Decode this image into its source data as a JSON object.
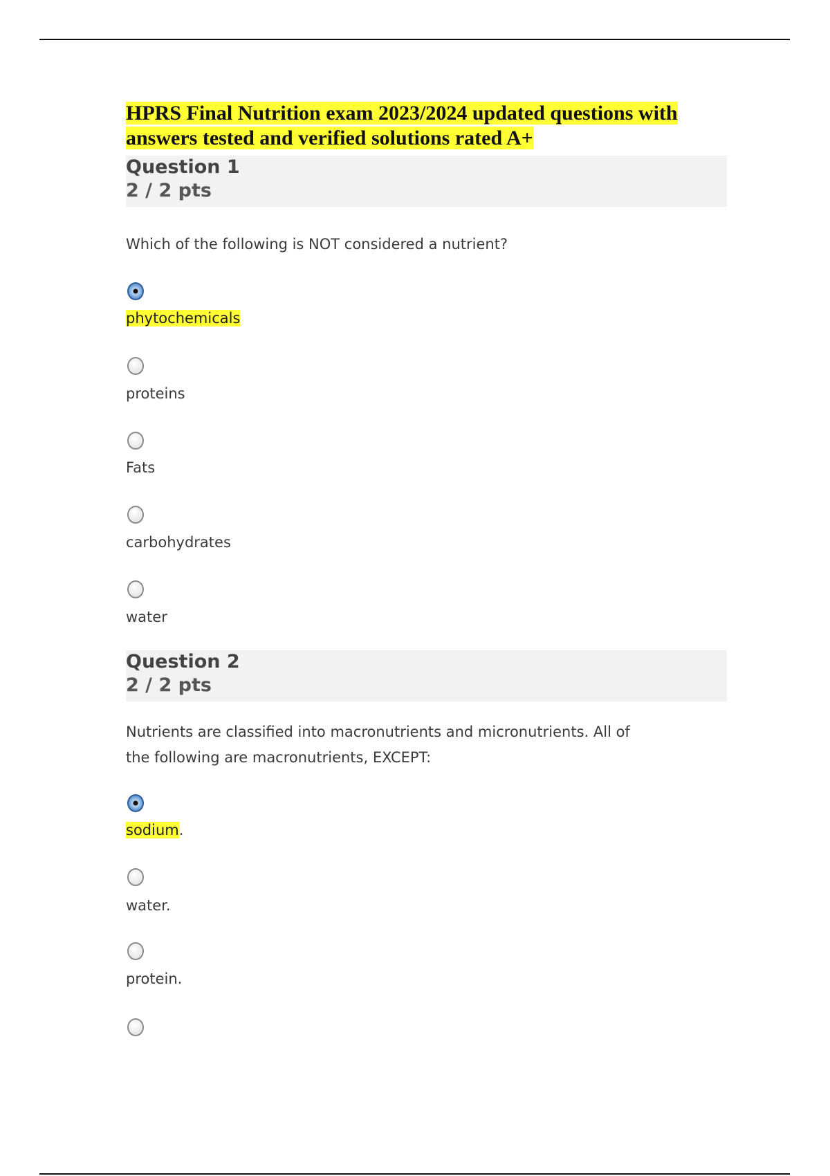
{
  "document": {
    "title_line1": "HPRS Final Nutrition exam 2023/2024 updated questions with",
    "title_line2": "answers tested and verified solutions rated A+",
    "highlight_color": "#ffff33"
  },
  "questions": [
    {
      "label": "Question 1",
      "points": "2 / 2 pts",
      "text": "Which of the following is NOT considered a nutrient?",
      "options": [
        {
          "label": "phytochemicals",
          "suffix": "",
          "selected": true
        },
        {
          "label": "proteins",
          "suffix": "",
          "selected": false
        },
        {
          "label": "Fats",
          "suffix": "",
          "selected": false
        },
        {
          "label": "carbohydrates",
          "suffix": "",
          "selected": false
        },
        {
          "label": "water",
          "suffix": "",
          "selected": false
        }
      ]
    },
    {
      "label": "Question 2",
      "points": "2 / 2 pts",
      "text_line1": "Nutrients are classified into macronutrients and micronutrients. All of",
      "text_line2": "the following are macronutrients, EXCEPT:",
      "options": [
        {
          "label": "sodium",
          "suffix": ".",
          "selected": true
        },
        {
          "label": "water.",
          "suffix": "",
          "selected": false
        },
        {
          "label": "protein.",
          "suffix": "",
          "selected": false
        },
        {
          "label": "",
          "suffix": "",
          "selected": false
        }
      ]
    }
  ]
}
